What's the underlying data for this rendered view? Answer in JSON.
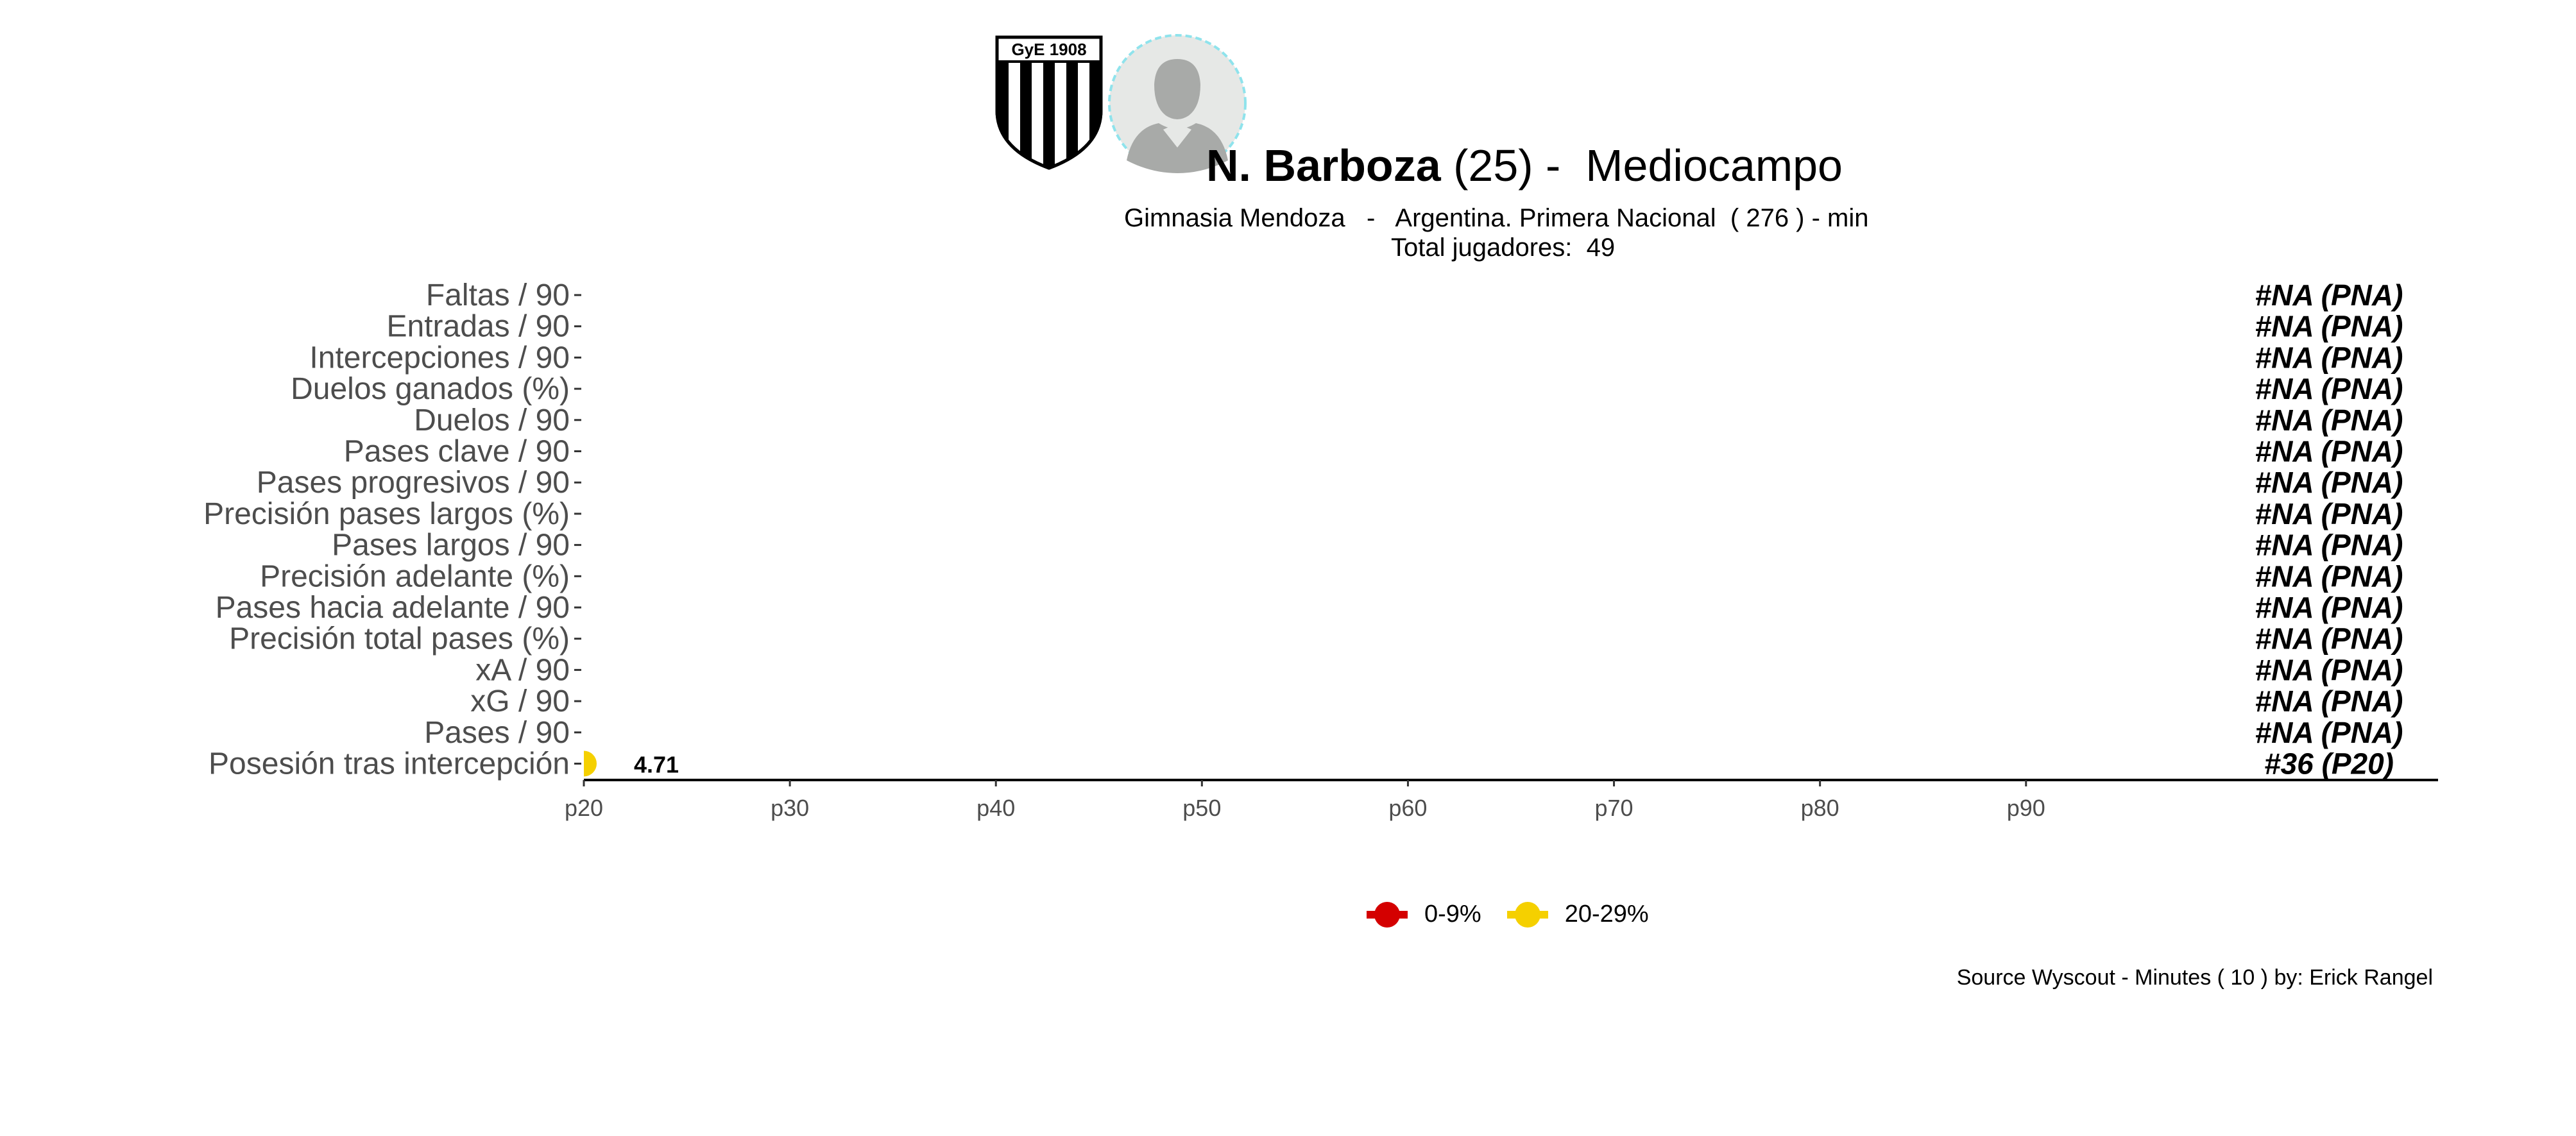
{
  "header": {
    "player_name": "N. Barboza",
    "player_age": "(25) -",
    "player_position": "Mediocampo",
    "subtitle_team": "Gimnasia Mendoza",
    "subtitle_league": "Argentina. Primera Nacional",
    "subtitle_minutes": "( 276 ) - min",
    "subtitle_sep": "-",
    "total_players_label": "Total jugadores:",
    "total_players_value": "49",
    "crest_text": "GyE 1908"
  },
  "footer": {
    "source": "Source Wyscout - Minutes ( 10 ) by: Erick Rangel"
  },
  "legend": [
    {
      "label": "0-9%",
      "color": "#d40000"
    },
    {
      "label": "20-29%",
      "color": "#f5d000"
    }
  ],
  "chart_data": {
    "type": "bar",
    "orientation": "horizontal",
    "x_ticks": [
      "p20",
      "p30",
      "p40",
      "p50",
      "p60",
      "p70",
      "p80",
      "p90"
    ],
    "xlim": [
      20,
      110
    ],
    "categories": [
      "Faltas / 90",
      "Entradas / 90",
      "Intercepciones / 90",
      "Duelos ganados (%)",
      "Duelos / 90",
      "Pases clave / 90",
      "Pases progresivos / 90",
      "Precisión pases largos (%)",
      "Pases largos / 90",
      "Precisión adelante (%)",
      "Pases hacia adelante / 90",
      "Precisión total pases (%)",
      "xA / 90",
      "xG / 90",
      "Pases / 90",
      "Posesión tras intercepción"
    ],
    "percentiles": [
      null,
      null,
      null,
      null,
      null,
      null,
      null,
      null,
      null,
      null,
      null,
      null,
      null,
      null,
      null,
      20
    ],
    "value_labels": [
      "",
      "",
      "",
      "",
      "",
      "",
      "",
      "",
      "",
      "",
      "",
      "",
      "",
      "",
      "",
      "4.71"
    ],
    "rank_labels": [
      "#NA (PNA)",
      "#NA (PNA)",
      "#NA (PNA)",
      "#NA (PNA)",
      "#NA (PNA)",
      "#NA (PNA)",
      "#NA (PNA)",
      "#NA (PNA)",
      "#NA (PNA)",
      "#NA (PNA)",
      "#NA (PNA)",
      "#NA (PNA)",
      "#NA (PNA)",
      "#NA (PNA)",
      "#NA (PNA)",
      "#36 (P20)"
    ],
    "bar_colors": [
      "",
      "",
      "",
      "",
      "",
      "",
      "",
      "",
      "",
      "",
      "",
      "",
      "",
      "",
      "",
      "#f5d000"
    ]
  }
}
